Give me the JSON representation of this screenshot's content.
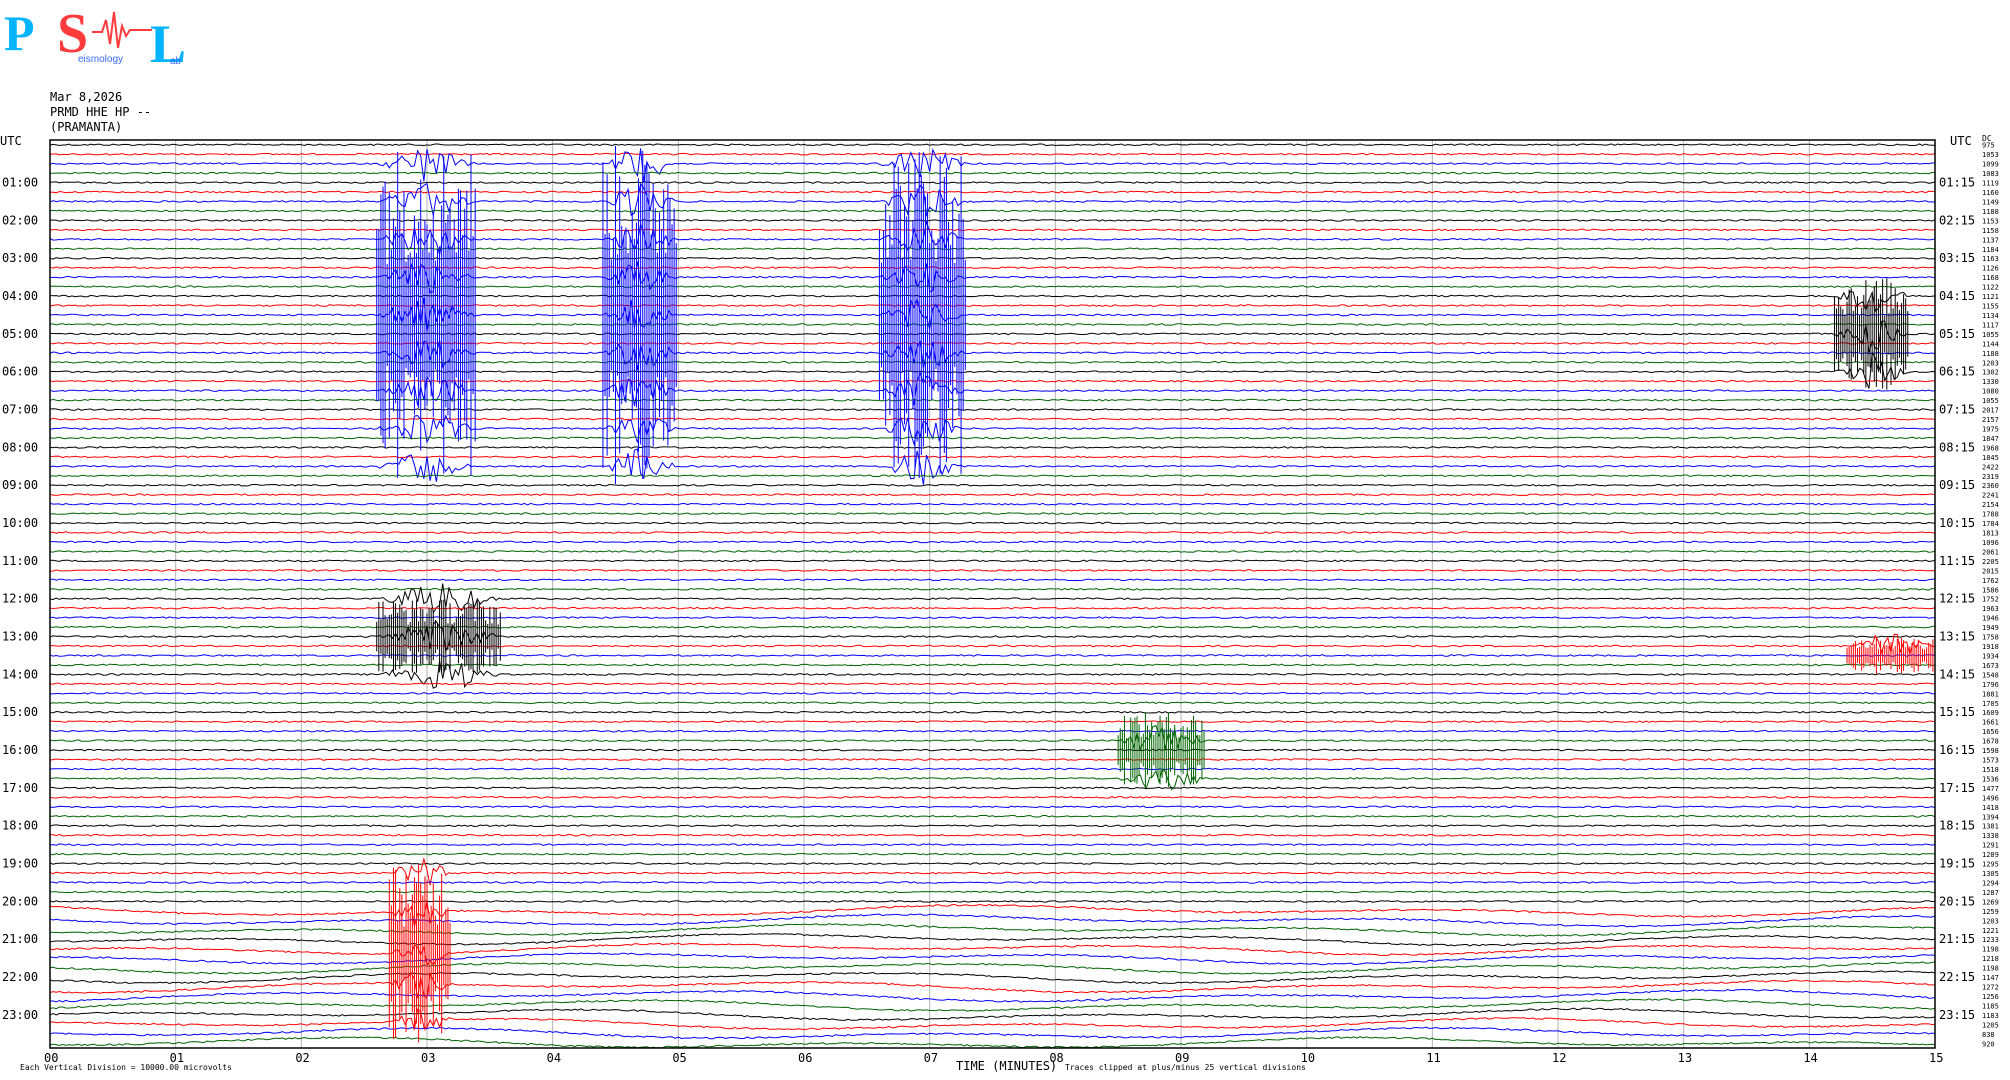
{
  "logo": {
    "letters": [
      "P",
      "S",
      "L"
    ],
    "sub_words": [
      "",
      "eismology",
      "ab"
    ],
    "colors": {
      "P": "#00b4ff",
      "S": "#ff3b3b",
      "L": "#00b4ff",
      "sub": "#3a6aff"
    }
  },
  "header": {
    "date": "Mar 8,2026",
    "station": "PRMD HHE HP --",
    "site": "(PRAMANTA)"
  },
  "axes": {
    "left_title": "UTC",
    "right_title": "UTC",
    "right_top_label": "DC",
    "xlabel": "TIME (MINUTES)",
    "footer_left": "Each Vertical Division = 10000.00 microvolts",
    "footer_right": "Traces clipped at plus/minus 25 vertical divisions"
  },
  "colors": {
    "black": "#000000",
    "red": "#ff0000",
    "blue": "#0000ff",
    "green": "#006400",
    "grid": "#b4b4b4"
  },
  "chart_data": {
    "type": "line",
    "title": "",
    "xlabel": "TIME (MINUTES)",
    "xlim": [
      0,
      15
    ],
    "x_ticks": [
      "00",
      "01",
      "02",
      "03",
      "04",
      "05",
      "06",
      "07",
      "08",
      "09",
      "10",
      "11",
      "12",
      "13",
      "14",
      "15"
    ],
    "rows": 96,
    "trace_minutes": 15,
    "trace_color_cycle": [
      "black",
      "red",
      "blue",
      "green"
    ],
    "left_hour_labels": [
      "01:00",
      "02:00",
      "03:00",
      "04:00",
      "05:00",
      "06:00",
      "07:00",
      "08:00",
      "09:00",
      "10:00",
      "11:00",
      "12:00",
      "13:00",
      "14:00",
      "15:00",
      "16:00",
      "17:00",
      "18:00",
      "19:00",
      "20:00",
      "21:00",
      "22:00",
      "23:00"
    ],
    "right_hour_labels": [
      "01:15",
      "02:15",
      "03:15",
      "04:15",
      "05:15",
      "06:15",
      "07:15",
      "08:15",
      "09:15",
      "10:15",
      "11:15",
      "12:15",
      "13:15",
      "14:15",
      "15:15",
      "16:15",
      "17:15",
      "18:15",
      "19:15",
      "20:15",
      "21:15",
      "22:15",
      "23:15"
    ],
    "dc_offsets": [
      975,
      1053,
      1099,
      1083,
      1119,
      1160,
      1149,
      1188,
      1153,
      1158,
      1137,
      1184,
      1163,
      1126,
      1168,
      1122,
      1121,
      1155,
      1134,
      1117,
      1055,
      1144,
      1188,
      1203,
      1302,
      1330,
      1080,
      1055,
      2017,
      2157,
      1975,
      1847,
      1968,
      1845,
      2422,
      2319,
      2360,
      2241,
      2154,
      1788,
      1784,
      1813,
      1096,
      2061,
      2205,
      2015,
      1762,
      1586,
      1752,
      1963,
      1946,
      1949,
      1758,
      1918,
      1934,
      1673,
      1548,
      1796,
      1881,
      1705,
      1609,
      1661,
      1656,
      1678,
      1598,
      1573,
      1518,
      1536,
      1477,
      1496,
      1418,
      1394,
      1381,
      1338,
      1291,
      1289,
      1295,
      1305,
      1294,
      1287,
      1269,
      1259,
      1203,
      1221,
      1233,
      1198,
      1218,
      1198,
      1147,
      1272,
      1256,
      1185,
      1183,
      1205,
      838,
      920
    ],
    "events": [
      {
        "label": "intense blue burst",
        "row_start": 0,
        "row_end": 36,
        "minute_start": 2.6,
        "minute_end": 3.4,
        "color": "blue"
      },
      {
        "label": "intense blue burst",
        "row_start": 0,
        "row_end": 36,
        "minute_start": 4.4,
        "minute_end": 5.0,
        "color": "blue"
      },
      {
        "label": "intense blue burst",
        "row_start": 0,
        "row_end": 36,
        "minute_start": 6.6,
        "minute_end": 7.3,
        "color": "blue"
      },
      {
        "label": "large event",
        "row_start": 48,
        "row_end": 56,
        "minute_start": 2.6,
        "minute_end": 3.6,
        "color": "black"
      },
      {
        "label": "large event",
        "row_start": 76,
        "row_end": 95,
        "minute_start": 2.7,
        "minute_end": 3.2,
        "color": "red"
      },
      {
        "label": "event",
        "row_start": 14,
        "row_end": 26,
        "minute_start": 14.2,
        "minute_end": 14.8,
        "color": "black"
      },
      {
        "label": "event",
        "row_start": 52,
        "row_end": 56,
        "minute_start": 14.3,
        "minute_end": 15.0,
        "color": "red"
      },
      {
        "label": "event",
        "row_start": 60,
        "row_end": 68,
        "minute_start": 8.5,
        "minute_end": 9.2,
        "color": "green"
      }
    ]
  }
}
